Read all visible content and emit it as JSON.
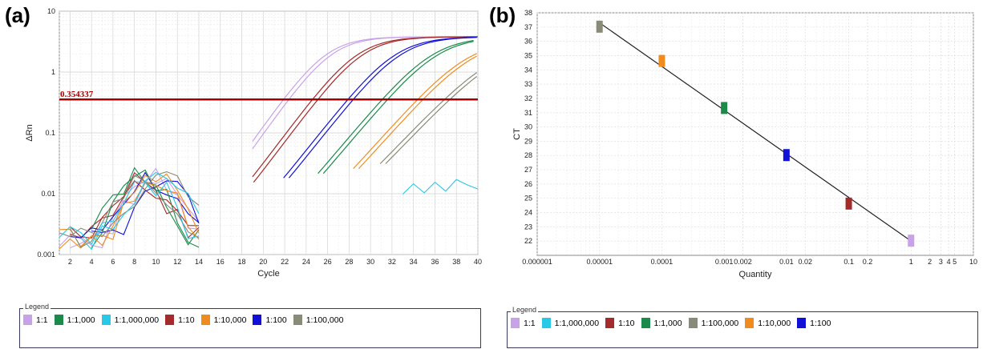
{
  "panels": {
    "a_label": "(a)",
    "b_label": "(b)"
  },
  "chart_data": [
    {
      "type": "line",
      "panel": "(a)",
      "xlabel": "Cycle",
      "ylabel": "ΔRn",
      "yscale": "log",
      "xlim": [
        1,
        40
      ],
      "ylim": [
        0.001,
        10
      ],
      "xticks": [
        2,
        4,
        6,
        8,
        10,
        12,
        14,
        16,
        18,
        20,
        22,
        24,
        26,
        28,
        30,
        32,
        34,
        36,
        38,
        40
      ],
      "yticks": [
        {
          "v": 0.001,
          "label": "0.001"
        },
        {
          "v": 0.01,
          "label": "0.01"
        },
        {
          "v": 0.1,
          "label": "0.1"
        },
        {
          "v": 1,
          "label": "1"
        },
        {
          "v": 10,
          "label": "10"
        }
      ],
      "grid": true,
      "threshold": {
        "value": 0.354337,
        "label": "0.354337",
        "color": "#a40000"
      },
      "series": [
        {
          "name": "1:1",
          "color": "#c8a2e8",
          "ct": 22.0
        },
        {
          "name": "1:10",
          "color": "#a52a2a",
          "ct": 24.7
        },
        {
          "name": "1:100",
          "color": "#1010d8",
          "ct": 28.0
        },
        {
          "name": "1:1,000",
          "color": "#1b8a4a",
          "ct": 31.2
        },
        {
          "name": "1:10,000",
          "color": "#f08c1e",
          "ct": 34.5
        },
        {
          "name": "1:100,000",
          "color": "#8a8a78",
          "ct": 37.0
        },
        {
          "name": "1:1,000,000",
          "color": "#28c8e6",
          "ct": null
        }
      ]
    },
    {
      "type": "scatter",
      "panel": "(b)",
      "xlabel": "Quantity",
      "ylabel": "CT",
      "xscale": "log",
      "xlim": [
        1e-06,
        10
      ],
      "ylim": [
        21,
        38
      ],
      "grid": true,
      "xticks": [
        {
          "v": 1e-06,
          "label": "0.000001"
        },
        {
          "v": 1e-05,
          "label": "0.00001"
        },
        {
          "v": 0.0001,
          "label": "0.0001"
        },
        {
          "v": 0.001,
          "label": "0.001"
        },
        {
          "v": 0.002,
          "label": "0.002"
        },
        {
          "v": 0.01,
          "label": "0.01"
        },
        {
          "v": 0.02,
          "label": "0.02"
        },
        {
          "v": 0.1,
          "label": "0.1"
        },
        {
          "v": 0.2,
          "label": "0.2"
        },
        {
          "v": 1,
          "label": "1"
        },
        {
          "v": 2,
          "label": "2"
        },
        {
          "v": 3,
          "label": "3"
        },
        {
          "v": 4,
          "label": "4"
        },
        {
          "v": 5,
          "label": "5"
        },
        {
          "v": 10,
          "label": "10"
        }
      ],
      "yticks": [
        22,
        23,
        24,
        25,
        26,
        27,
        28,
        29,
        30,
        31,
        32,
        33,
        34,
        35,
        36,
        37,
        38
      ],
      "points": [
        {
          "name": "1:1",
          "x": 1,
          "y": 22.0,
          "color": "#c8a2e8"
        },
        {
          "name": "1:10",
          "x": 0.1,
          "y": 24.6,
          "color": "#a52a2a"
        },
        {
          "name": "1:100",
          "x": 0.01,
          "y": 28.0,
          "color": "#1010d8"
        },
        {
          "name": "1:1,000",
          "x": 0.001,
          "y": 31.3,
          "color": "#1b8a4a"
        },
        {
          "name": "1:10,000",
          "x": 0.0001,
          "y": 34.6,
          "color": "#f08c1e"
        },
        {
          "name": "1:100,000",
          "x": 1e-05,
          "y": 37.0,
          "color": "#8a8a78"
        }
      ],
      "fit_line": {
        "x": [
          1e-05,
          1
        ],
        "y": [
          37.3,
          22.0
        ]
      }
    }
  ],
  "legend_a": {
    "title": "Legend",
    "items": [
      {
        "label": "1:1",
        "color": "#c8a2e8"
      },
      {
        "label": "1:1,000",
        "color": "#1b8a4a"
      },
      {
        "label": "1:1,000,000",
        "color": "#28c8e6"
      },
      {
        "label": "1:10",
        "color": "#a52a2a"
      },
      {
        "label": "1:10,000",
        "color": "#f08c1e"
      },
      {
        "label": "1:100",
        "color": "#1010d8"
      },
      {
        "label": "1:100,000",
        "color": "#8a8a78"
      }
    ]
  },
  "legend_b": {
    "title": "Legend",
    "items": [
      {
        "label": "1:1",
        "color": "#c8a2e8"
      },
      {
        "label": "1:1,000,000",
        "color": "#28c8e6"
      },
      {
        "label": "1:10",
        "color": "#a52a2a"
      },
      {
        "label": "1:1,000",
        "color": "#1b8a4a"
      },
      {
        "label": "1:100,000",
        "color": "#8a8a78"
      },
      {
        "label": "1:10,000",
        "color": "#f08c1e"
      },
      {
        "label": "1:100",
        "color": "#1010d8"
      }
    ]
  }
}
